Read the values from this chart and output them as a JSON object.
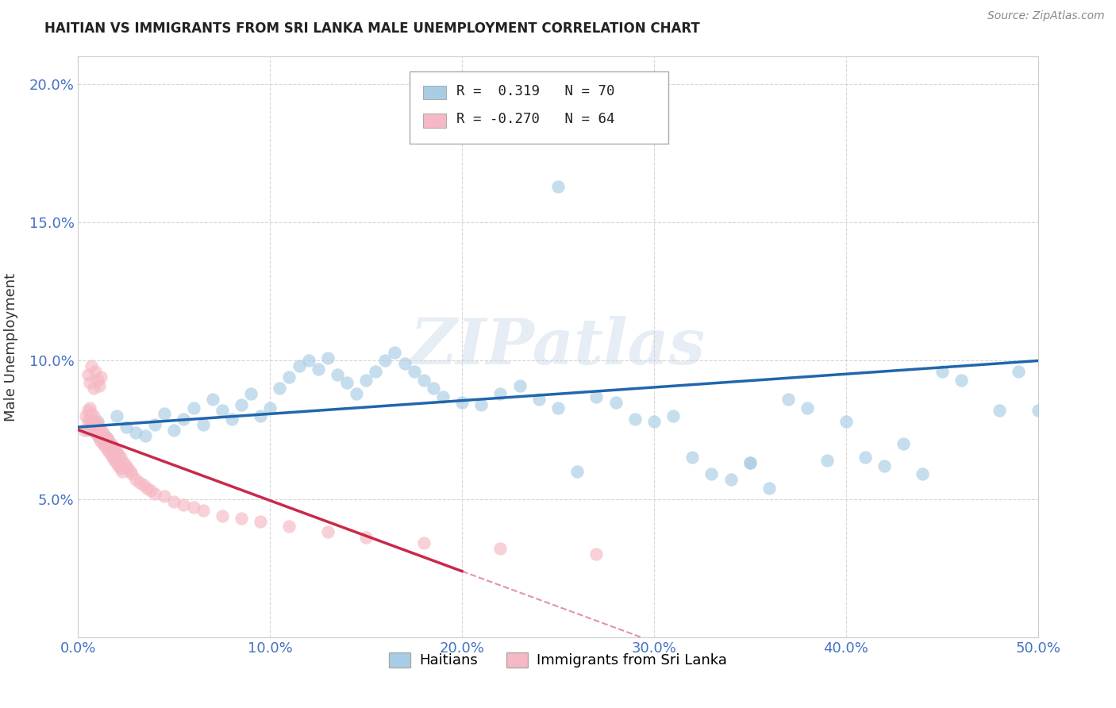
{
  "title": "HAITIAN VS IMMIGRANTS FROM SRI LANKA MALE UNEMPLOYMENT CORRELATION CHART",
  "source": "Source: ZipAtlas.com",
  "ylabel": "Male Unemployment",
  "watermark": "ZIPatlas",
  "xlim": [
    0.0,
    0.5
  ],
  "ylim": [
    0.0,
    0.21
  ],
  "xticks": [
    0.0,
    0.1,
    0.2,
    0.3,
    0.4,
    0.5
  ],
  "yticks": [
    0.05,
    0.1,
    0.15,
    0.2
  ],
  "color_blue": "#a8cce4",
  "color_pink": "#f5b8c4",
  "color_blue_line": "#2166ac",
  "color_pink_line": "#c9294a",
  "color_axis": "#4472c4",
  "background": "#ffffff",
  "grid_color": "#cccccc",
  "haitian_x": [
    0.005,
    0.01,
    0.015,
    0.02,
    0.025,
    0.03,
    0.035,
    0.04,
    0.045,
    0.05,
    0.055,
    0.06,
    0.065,
    0.07,
    0.075,
    0.08,
    0.085,
    0.09,
    0.095,
    0.1,
    0.105,
    0.11,
    0.115,
    0.12,
    0.125,
    0.13,
    0.135,
    0.14,
    0.145,
    0.15,
    0.155,
    0.16,
    0.165,
    0.17,
    0.175,
    0.18,
    0.185,
    0.19,
    0.2,
    0.21,
    0.22,
    0.23,
    0.24,
    0.25,
    0.26,
    0.27,
    0.28,
    0.29,
    0.3,
    0.31,
    0.32,
    0.33,
    0.34,
    0.35,
    0.36,
    0.37,
    0.38,
    0.39,
    0.4,
    0.41,
    0.42,
    0.43,
    0.44,
    0.45,
    0.46,
    0.48,
    0.49,
    0.5,
    0.25,
    0.35
  ],
  "haitian_y": [
    0.075,
    0.078,
    0.072,
    0.08,
    0.076,
    0.074,
    0.073,
    0.077,
    0.081,
    0.075,
    0.079,
    0.083,
    0.077,
    0.086,
    0.082,
    0.079,
    0.084,
    0.088,
    0.08,
    0.083,
    0.09,
    0.094,
    0.098,
    0.1,
    0.097,
    0.101,
    0.095,
    0.092,
    0.088,
    0.093,
    0.096,
    0.1,
    0.103,
    0.099,
    0.096,
    0.093,
    0.09,
    0.087,
    0.085,
    0.084,
    0.088,
    0.091,
    0.086,
    0.083,
    0.06,
    0.087,
    0.085,
    0.079,
    0.078,
    0.08,
    0.065,
    0.059,
    0.057,
    0.063,
    0.054,
    0.086,
    0.083,
    0.064,
    0.078,
    0.065,
    0.062,
    0.07,
    0.059,
    0.096,
    0.093,
    0.082,
    0.096,
    0.082,
    0.163,
    0.063
  ],
  "srilanka_x": [
    0.003,
    0.004,
    0.005,
    0.005,
    0.006,
    0.006,
    0.007,
    0.007,
    0.008,
    0.008,
    0.009,
    0.009,
    0.01,
    0.01,
    0.011,
    0.011,
    0.012,
    0.012,
    0.013,
    0.013,
    0.014,
    0.014,
    0.015,
    0.015,
    0.016,
    0.016,
    0.017,
    0.017,
    0.018,
    0.018,
    0.019,
    0.019,
    0.02,
    0.02,
    0.021,
    0.021,
    0.022,
    0.022,
    0.023,
    0.024,
    0.025,
    0.026,
    0.027,
    0.028,
    0.03,
    0.032,
    0.034,
    0.036,
    0.038,
    0.04,
    0.045,
    0.05,
    0.055,
    0.06,
    0.065,
    0.075,
    0.085,
    0.095,
    0.11,
    0.13,
    0.15,
    0.18,
    0.22,
    0.27
  ],
  "srilanka_y": [
    0.075,
    0.08,
    0.078,
    0.082,
    0.079,
    0.083,
    0.077,
    0.081,
    0.076,
    0.08,
    0.074,
    0.078,
    0.073,
    0.077,
    0.072,
    0.076,
    0.071,
    0.075,
    0.07,
    0.074,
    0.069,
    0.073,
    0.068,
    0.072,
    0.067,
    0.071,
    0.066,
    0.07,
    0.065,
    0.069,
    0.064,
    0.068,
    0.063,
    0.067,
    0.062,
    0.066,
    0.061,
    0.065,
    0.06,
    0.063,
    0.062,
    0.061,
    0.06,
    0.059,
    0.057,
    0.056,
    0.055,
    0.054,
    0.053,
    0.052,
    0.051,
    0.049,
    0.048,
    0.047,
    0.046,
    0.044,
    0.043,
    0.042,
    0.04,
    0.038,
    0.036,
    0.034,
    0.032,
    0.03
  ],
  "srilanka_high_x": [
    0.005,
    0.006,
    0.007,
    0.008,
    0.009,
    0.01,
    0.011,
    0.012
  ],
  "srilanka_high_y": [
    0.095,
    0.092,
    0.098,
    0.09,
    0.096,
    0.093,
    0.091,
    0.094
  ]
}
